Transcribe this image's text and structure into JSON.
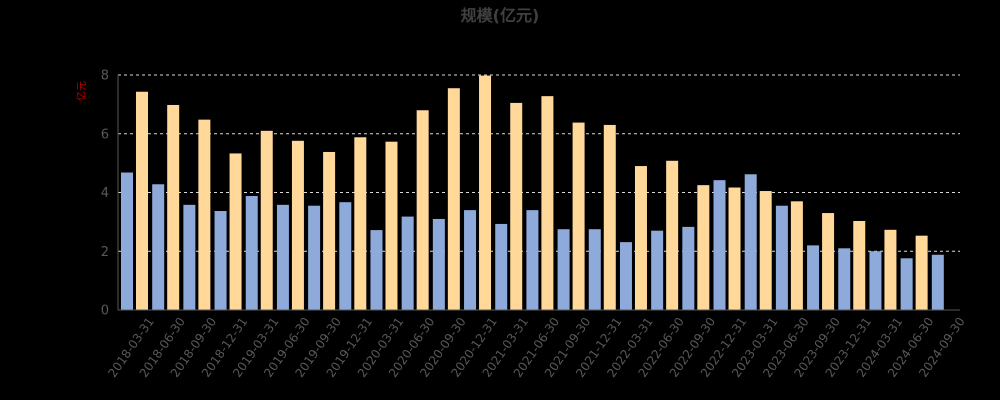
{
  "chart_data": {
    "type": "bar",
    "title": "规模(亿元)",
    "ylabel": "亿元",
    "ylim": [
      0,
      8
    ],
    "yticks": [
      "0",
      "2",
      "4",
      "6",
      "8"
    ],
    "grid": true,
    "legend": "none",
    "categories": [
      "2018-03-31",
      "2018-06-30",
      "2018-09-30",
      "2018-12-31",
      "2019-03-31",
      "2019-06-30",
      "2019-09-30",
      "2019-12-31",
      "2020-03-31",
      "2020-06-30",
      "2020-09-30",
      "2020-12-31",
      "2021-03-31",
      "2021-06-30",
      "2021-09-30",
      "2021-12-31",
      "2022-03-31",
      "2022-06-30",
      "2022-09-30",
      "2022-12-31",
      "2023-03-31",
      "2023-06-30",
      "2023-09-30",
      "2023-12-31",
      "2024-03-31",
      "2024-06-30",
      "2024-09-30"
    ],
    "series": [
      {
        "color": "#8eaadb",
        "values": [
          4.68,
          4.28,
          3.58,
          3.37,
          3.88,
          3.58,
          3.55,
          3.67,
          2.72,
          3.18,
          3.1,
          3.4,
          2.93,
          3.4,
          2.75,
          2.75,
          2.31,
          2.7,
          2.83,
          4.42,
          4.62,
          3.55,
          2.2,
          2.1,
          2.0,
          1.76,
          1.88
        ]
      },
      {
        "color": "#ffd89a",
        "values": [
          7.43,
          6.98,
          6.48,
          5.33,
          6.1,
          5.76,
          5.38,
          5.88,
          5.73,
          6.8,
          7.55,
          7.98,
          7.05,
          7.28,
          6.38,
          6.3,
          4.9,
          5.08,
          4.25,
          4.17,
          4.05,
          3.7,
          3.3,
          3.03,
          2.73,
          2.53,
          null
        ]
      }
    ],
    "colors": {
      "background": "#000000",
      "title": "#404040",
      "ylabel": "#c00000",
      "tick_label": "#595959",
      "grid": "#d9d9d9",
      "axis": "#595959"
    }
  }
}
